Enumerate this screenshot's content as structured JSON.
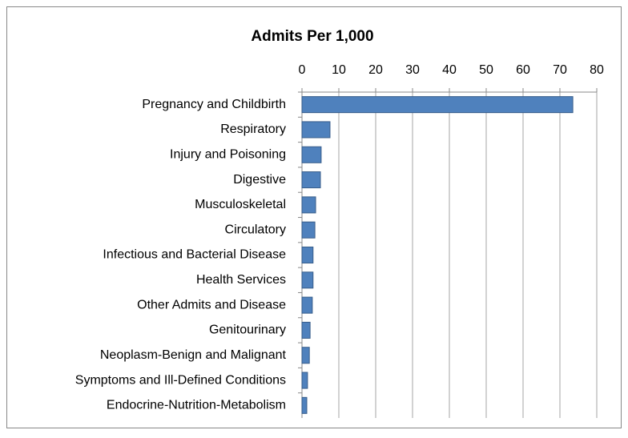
{
  "chart_data": {
    "type": "bar",
    "orientation": "horizontal",
    "title": "Admits Per 1,000",
    "categories": [
      "Pregnancy and Childbirth",
      "Respiratory",
      "Injury and Poisoning",
      "Digestive",
      "Musculoskeletal",
      "Circulatory",
      "Infectious and Bacterial Disease",
      "Health Services",
      "Other Admits and Disease",
      "Genitourinary",
      "Neoplasm-Benign and Malignant",
      "Symptoms and Ill-Defined Conditions",
      "Endocrine-Nutrition-Metabolism"
    ],
    "values": [
      73.5,
      7.6,
      5.2,
      5.0,
      3.7,
      3.5,
      3.0,
      3.0,
      2.8,
      2.2,
      2.0,
      1.5,
      1.3
    ],
    "color": "#4f81bd",
    "xlim": [
      0,
      80
    ],
    "xticks": [
      0,
      10,
      20,
      30,
      40,
      50,
      60,
      70,
      80
    ],
    "grid": true
  }
}
